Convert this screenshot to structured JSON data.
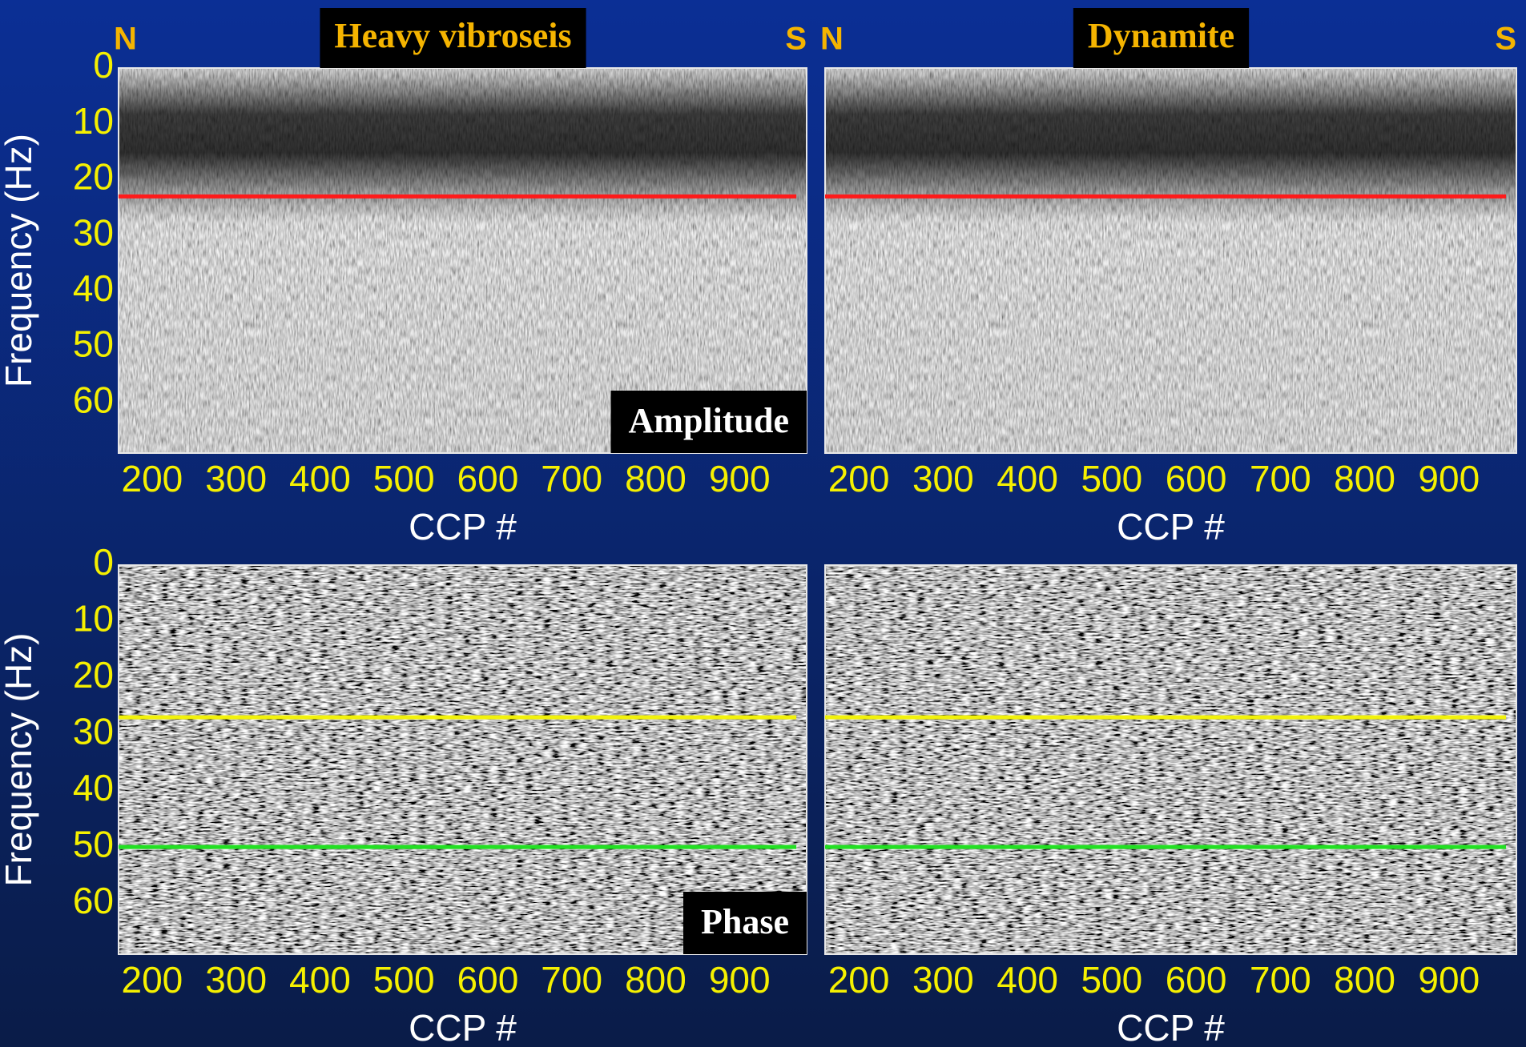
{
  "chart_data": [
    {
      "type": "image",
      "style": "amplitude",
      "title": "Heavy vibroseis",
      "left_label": "N",
      "right_label": "S",
      "panel_label": "Amplitude",
      "xlabel": "CCP #",
      "ylabel": "Frequency (Hz)",
      "xlim": [
        160,
        980
      ],
      "ylim": [
        0,
        69
      ],
      "xticks": [
        200,
        300,
        400,
        500,
        600,
        700,
        800,
        900
      ],
      "yticks": [
        0,
        10,
        20,
        30,
        40,
        50,
        60
      ],
      "hlines": [
        {
          "value": 23,
          "color": "#ff1a1a"
        }
      ]
    },
    {
      "type": "image",
      "style": "amplitude",
      "title": "Dynamite",
      "left_label": "N",
      "right_label": "S",
      "xlabel": "CCP #",
      "xlim": [
        160,
        980
      ],
      "ylim": [
        0,
        69
      ],
      "xticks": [
        200,
        300,
        400,
        500,
        600,
        700,
        800,
        900
      ],
      "hlines": [
        {
          "value": 23,
          "color": "#ff1a1a"
        }
      ]
    },
    {
      "type": "image",
      "style": "phase",
      "panel_label": "Phase",
      "xlabel": "CCP #",
      "ylabel": "Frequency (Hz)",
      "xlim": [
        160,
        980
      ],
      "ylim": [
        0,
        69
      ],
      "xticks": [
        200,
        300,
        400,
        500,
        600,
        700,
        800,
        900
      ],
      "yticks": [
        0,
        10,
        20,
        30,
        40,
        50,
        60
      ],
      "hlines": [
        {
          "value": 27,
          "color": "#f2f20a"
        },
        {
          "value": 50,
          "color": "#22e022"
        }
      ]
    },
    {
      "type": "image",
      "style": "phase",
      "xlabel": "CCP #",
      "xlim": [
        160,
        980
      ],
      "ylim": [
        0,
        69
      ],
      "xticks": [
        200,
        300,
        400,
        500,
        600,
        700,
        800,
        900
      ],
      "hlines": [
        {
          "value": 27,
          "color": "#f2f20a"
        },
        {
          "value": 50,
          "color": "#22e022"
        }
      ]
    }
  ]
}
